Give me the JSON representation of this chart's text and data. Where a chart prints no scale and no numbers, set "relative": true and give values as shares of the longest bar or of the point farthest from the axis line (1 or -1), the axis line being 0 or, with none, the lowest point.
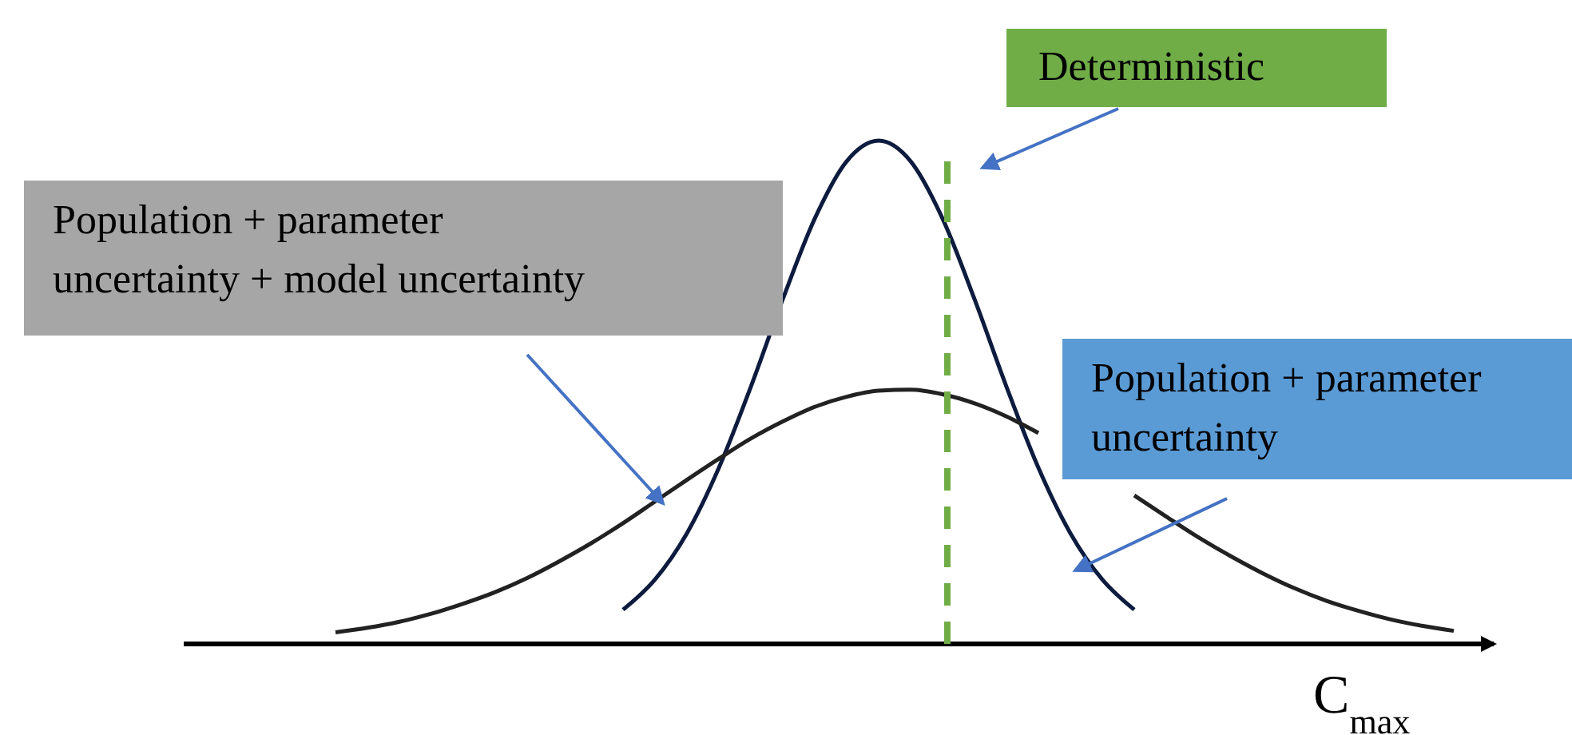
{
  "chart_data": {
    "type": "line",
    "relative": true,
    "xlabel": "C$_{max}$",
    "categories": [
      null,
      null,
      null,
      null,
      null,
      null,
      null,
      null,
      null,
      null,
      null,
      null,
      null,
      null,
      null,
      null,
      null,
      null,
      null,
      null,
      null,
      null,
      null,
      null,
      null,
      null,
      null,
      null,
      null,
      null,
      null,
      null,
      null,
      null,
      null,
      null,
      null,
      null,
      null,
      null,
      null,
      null
    ],
    "series": [
      {
        "name": "Population + parameter uncertainty",
        "color": "#0d1b3e",
        "values": [
          null,
          null,
          null,
          null,
          null,
          null,
          null,
          null,
          null,
          null,
          null,
          null,
          null,
          null,
          0.068,
          0.128,
          0.22,
          0.35,
          0.511,
          0.685,
          0.845,
          0.959,
          1,
          0.959,
          0.845,
          0.685,
          0.511,
          0.35,
          0.22,
          0.128,
          0.068,
          null,
          null,
          null,
          null,
          null,
          null,
          null,
          null,
          null,
          null,
          null
        ]
      },
      {
        "name": "Population + parameter uncertainty + model uncertainty",
        "color": "#222222",
        "values": [
          null,
          null,
          null,
          null,
          null,
          0.023,
          0.032,
          0.044,
          0.06,
          0.08,
          0.103,
          0.131,
          0.164,
          0.2,
          0.24,
          0.283,
          0.326,
          0.368,
          0.408,
          0.442,
          0.471,
          0.491,
          0.503,
          0.505,
          0.496,
          0.478,
          0.452,
          0.419,
          null,
          null,
          0.295,
          0.253,
          0.212,
          0.175,
          0.141,
          0.111,
          0.086,
          0.066,
          0.049,
          0.036,
          0.026,
          null
        ]
      }
    ],
    "annotations": [
      "Deterministic"
    ],
    "marker": "none",
    "line_style": "solid"
  }
}
